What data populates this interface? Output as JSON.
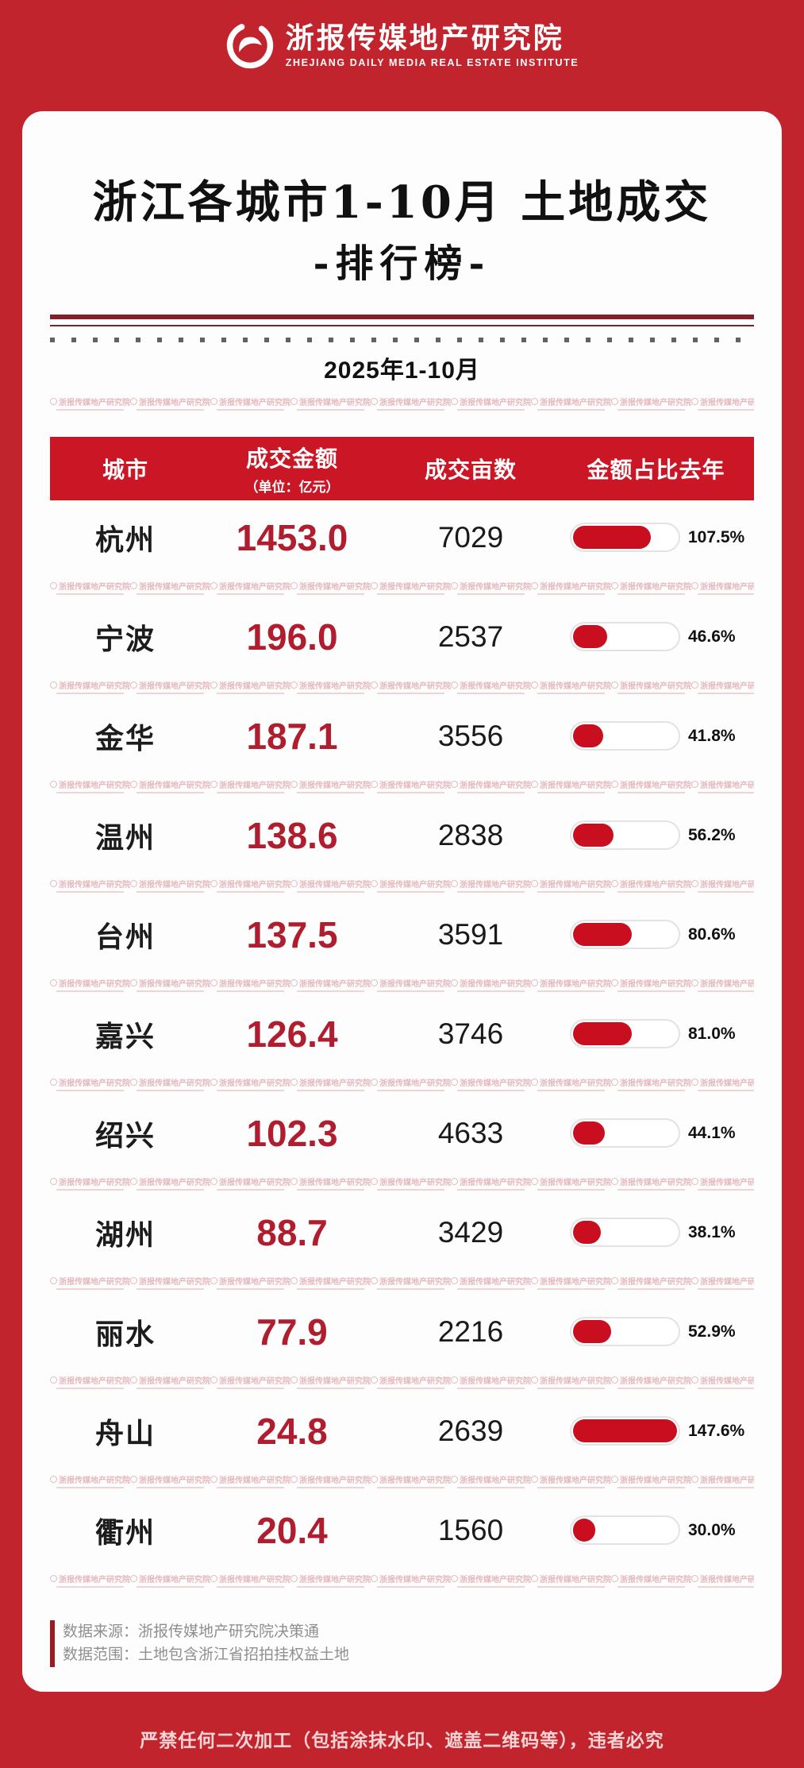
{
  "brand": {
    "name": "浙报传媒地产研究院",
    "name_en": "ZHEJIANG DAILY MEDIA REAL ESTATE INSTITUTE"
  },
  "title": {
    "line1": "浙江各城市1-10月 土地成交",
    "line2": "-排行榜-",
    "period": "2025年1-10月"
  },
  "table": {
    "columns": {
      "city": "城市",
      "amount": "成交金额",
      "amount_unit": "（单位：亿元）",
      "area": "成交亩数",
      "ratio": "金额占比去年"
    },
    "bar_max": 147.6,
    "bar_color": "#c90f1f",
    "rows": [
      {
        "city": "杭州",
        "amount": "1453.0",
        "area": "7029",
        "ratio": "107.5%",
        "ratio_value": 107.5
      },
      {
        "city": "宁波",
        "amount": "196.0",
        "area": "2537",
        "ratio": "46.6%",
        "ratio_value": 46.6
      },
      {
        "city": "金华",
        "amount": "187.1",
        "area": "3556",
        "ratio": "41.8%",
        "ratio_value": 41.8
      },
      {
        "city": "温州",
        "amount": "138.6",
        "area": "2838",
        "ratio": "56.2%",
        "ratio_value": 56.2
      },
      {
        "city": "台州",
        "amount": "137.5",
        "area": "3591",
        "ratio": "80.6%",
        "ratio_value": 80.6
      },
      {
        "city": "嘉兴",
        "amount": "126.4",
        "area": "3746",
        "ratio": "81.0%",
        "ratio_value": 81.0
      },
      {
        "city": "绍兴",
        "amount": "102.3",
        "area": "4633",
        "ratio": "44.1%",
        "ratio_value": 44.1
      },
      {
        "city": "湖州",
        "amount": "88.7",
        "area": "3429",
        "ratio": "38.1%",
        "ratio_value": 38.1
      },
      {
        "city": "丽水",
        "amount": "77.9",
        "area": "2216",
        "ratio": "52.9%",
        "ratio_value": 52.9
      },
      {
        "city": "舟山",
        "amount": "24.8",
        "area": "2639",
        "ratio": "147.6%",
        "ratio_value": 147.6
      },
      {
        "city": "衢州",
        "amount": "20.4",
        "area": "1560",
        "ratio": "30.0%",
        "ratio_value": 30.0
      }
    ]
  },
  "watermark": {
    "text": "浙报传媒地产研究院",
    "per_row": 9
  },
  "source": {
    "line1": "数据来源：浙报传媒地产研究院决策通",
    "line2": "数据范围：土地包含浙江省招拍挂权益土地"
  },
  "disclaimer": "严禁任何二次加工（包括涂抹水印、遮盖二维码等），违者必究",
  "colors": {
    "background_red": "#c2242e",
    "header_bar_red": "#cb1626",
    "amount_red": "#b01d2e",
    "divider_maroon": "#7e232c",
    "watermark_pink": "#e4b9bd"
  },
  "chart_data": {
    "type": "table",
    "title": "浙江各城市1-10月土地成交排行榜",
    "subtitle": "2025年1-10月",
    "columns": [
      "城市",
      "成交金额（亿元）",
      "成交亩数",
      "金额占比去年"
    ],
    "categories": [
      "杭州",
      "宁波",
      "金华",
      "温州",
      "台州",
      "嘉兴",
      "绍兴",
      "湖州",
      "丽水",
      "舟山",
      "衢州"
    ],
    "series": [
      {
        "name": "成交金额（亿元）",
        "values": [
          1453.0,
          196.0,
          187.1,
          138.6,
          137.5,
          126.4,
          102.3,
          88.7,
          77.9,
          24.8,
          20.4
        ]
      },
      {
        "name": "成交亩数",
        "values": [
          7029,
          2537,
          3556,
          2838,
          3591,
          3746,
          4633,
          3429,
          2216,
          2639,
          1560
        ]
      },
      {
        "name": "金额占比去年（%）",
        "values": [
          107.5,
          46.6,
          41.8,
          56.2,
          80.6,
          81.0,
          44.1,
          38.1,
          52.9,
          147.6,
          30.0
        ]
      }
    ],
    "legend_position": "none",
    "grid": false
  }
}
